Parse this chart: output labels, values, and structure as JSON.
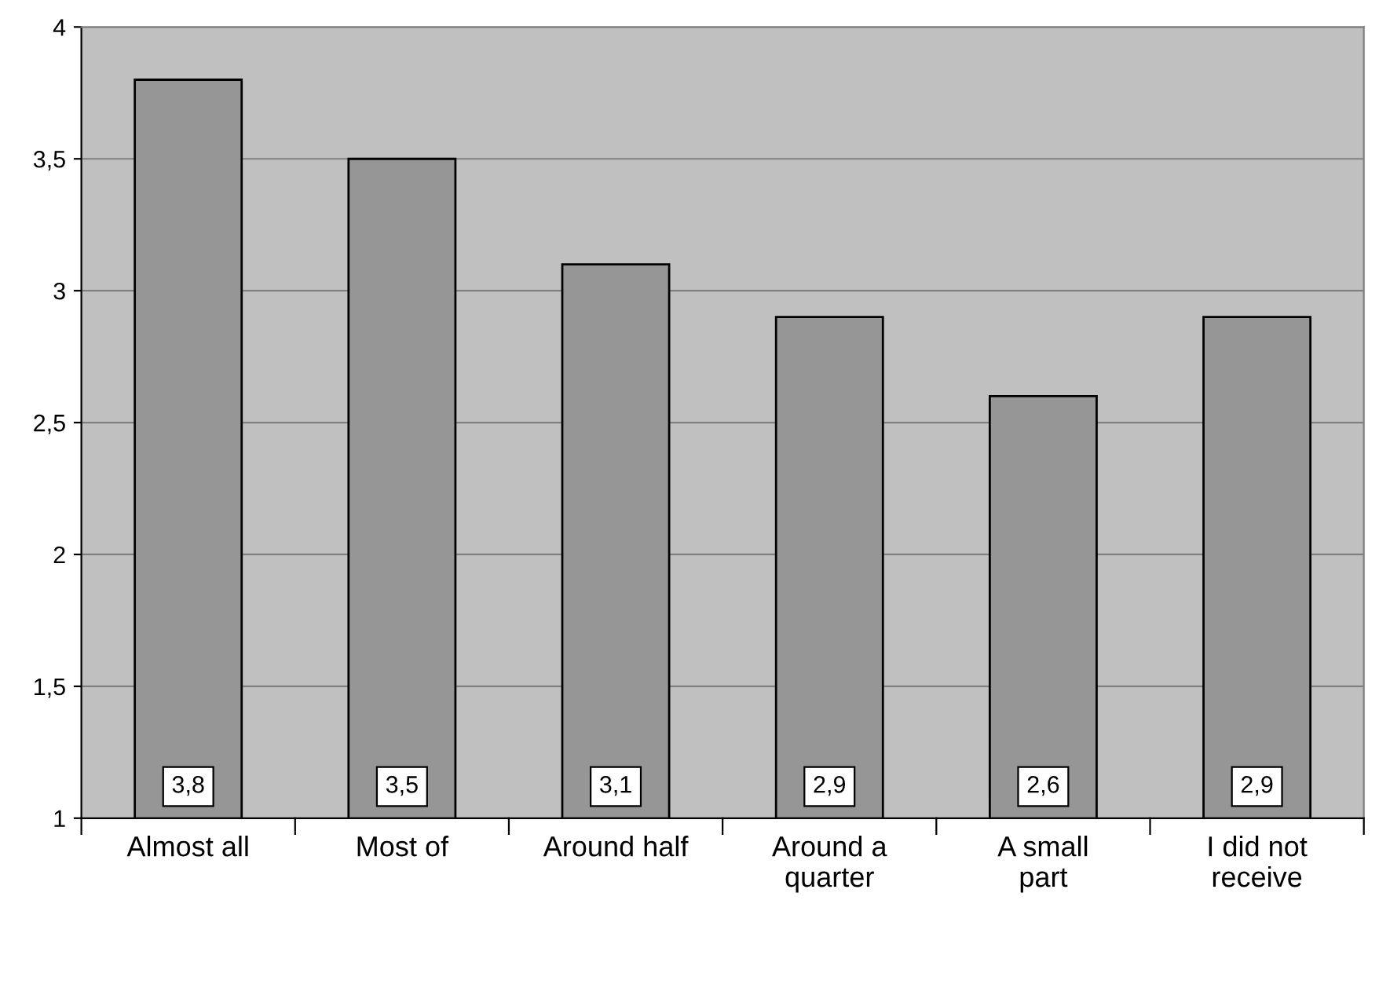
{
  "chart_data": {
    "type": "bar",
    "categories": [
      "Almost all",
      "Most of",
      "Around half",
      "Around a\nquarter",
      "A small\npart",
      "I did not\nreceive"
    ],
    "values": [
      3.8,
      3.5,
      3.1,
      2.9,
      2.6,
      2.9
    ],
    "value_labels": [
      "3,8",
      "3,5",
      "3,1",
      "2,9",
      "2,6",
      "2,9"
    ],
    "color": "#969696",
    "ylim": [
      1,
      4
    ],
    "yticks": [
      1,
      {
        "value": 1.5,
        "label": "1,5"
      },
      2,
      {
        "value": 2.5,
        "label": "2,5"
      },
      3,
      {
        "value": 3.5,
        "label": "3,5"
      },
      4
    ],
    "grid": "y"
  }
}
